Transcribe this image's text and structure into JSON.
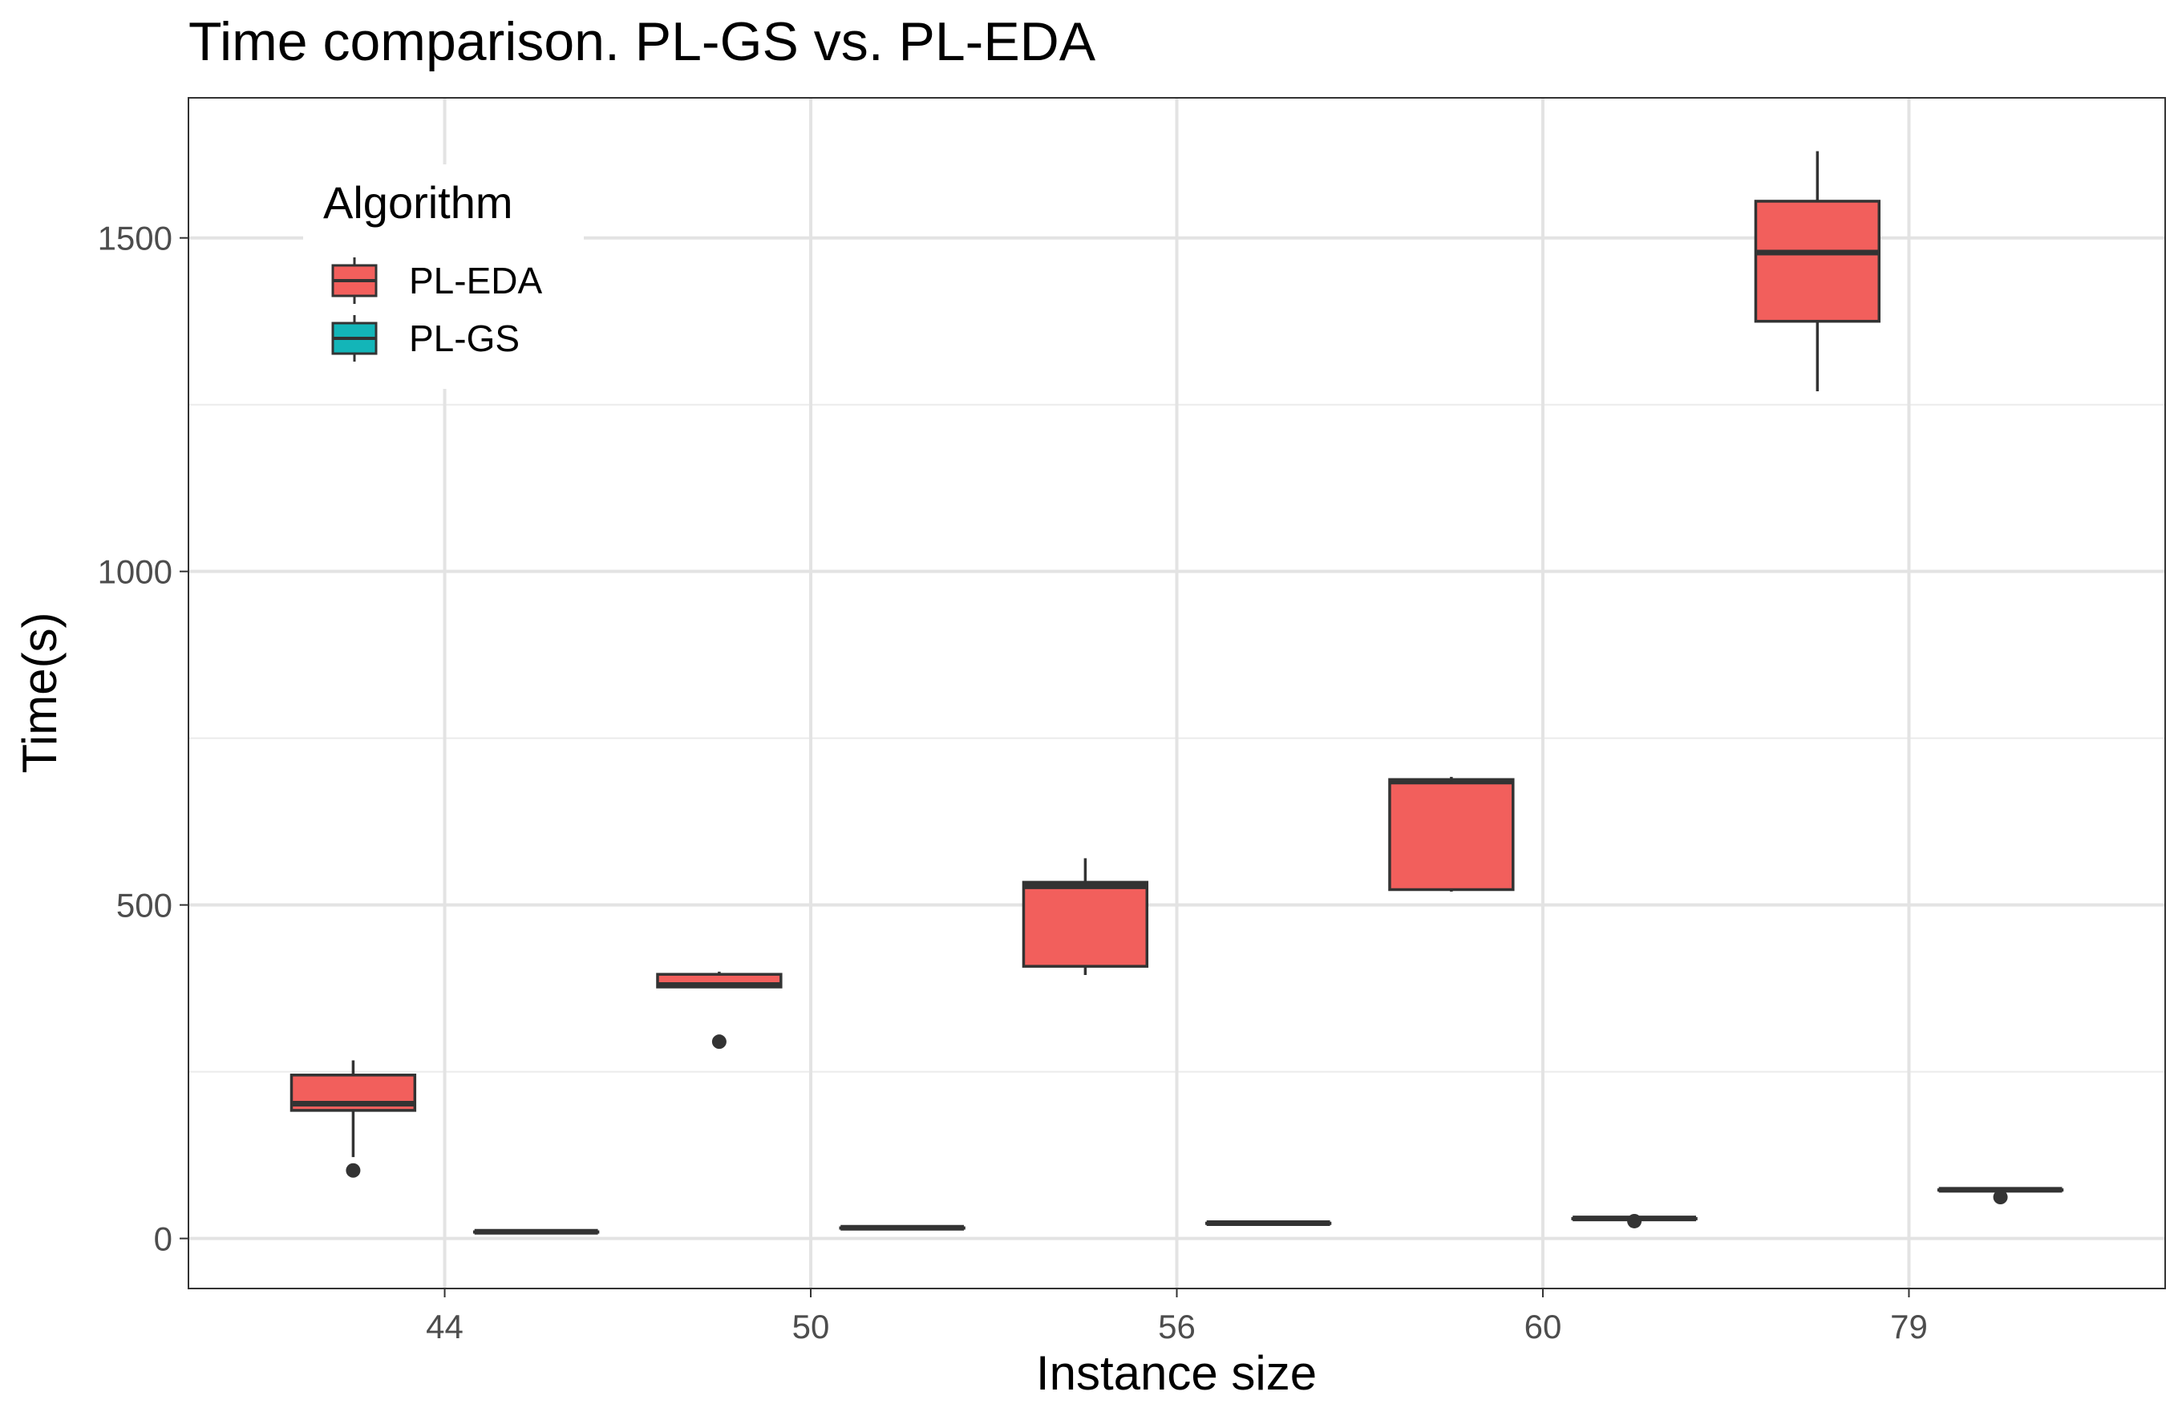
{
  "chart_data": {
    "type": "boxplot",
    "title": "Time comparison. PL-GS vs. PL-EDA",
    "xlabel": "Instance size",
    "ylabel": "Time(s)",
    "ylim": [
      -75,
      1710
    ],
    "y_ticks": [
      0,
      500,
      1000,
      1500
    ],
    "y_tick_labels": [
      "0",
      "500",
      "1000",
      "1500"
    ],
    "categories": [
      "44",
      "50",
      "56",
      "60",
      "79"
    ],
    "grid": true,
    "legend": {
      "title": "Algorithm",
      "placement": "top-left inside",
      "entries": [
        "PL-EDA",
        "PL-GS"
      ]
    },
    "series": [
      {
        "name": "PL-EDA",
        "color": "#F25F5C",
        "boxes": [
          {
            "category": "44",
            "min": 122,
            "q1": 192,
            "median": 202,
            "q3": 245,
            "max": 267,
            "outliers": [
              102
            ]
          },
          {
            "category": "50",
            "min": 377,
            "q1": 377,
            "median": 380,
            "q3": 396,
            "max": 400,
            "outliers": [
              295
            ]
          },
          {
            "category": "56",
            "min": 395,
            "q1": 408,
            "median": 528,
            "q3": 534,
            "max": 570,
            "outliers": []
          },
          {
            "category": "60",
            "min": 520,
            "q1": 523,
            "median": 685,
            "q3": 688,
            "max": 692,
            "outliers": []
          },
          {
            "category": "79",
            "min": 1270,
            "q1": 1375,
            "median": 1478,
            "q3": 1555,
            "max": 1630,
            "outliers": []
          }
        ]
      },
      {
        "name": "PL-GS",
        "color": "#13B5B8",
        "boxes": [
          {
            "category": "44",
            "min": 10,
            "q1": 10,
            "median": 10,
            "q3": 10,
            "max": 10,
            "outliers": []
          },
          {
            "category": "50",
            "min": 16,
            "q1": 16,
            "median": 16,
            "q3": 16,
            "max": 16,
            "outliers": []
          },
          {
            "category": "56",
            "min": 23,
            "q1": 23,
            "median": 23,
            "q3": 23,
            "max": 23,
            "outliers": []
          },
          {
            "category": "60",
            "min": 30,
            "q1": 30,
            "median": 30,
            "q3": 30,
            "max": 30,
            "outliers": [
              26
            ]
          },
          {
            "category": "79",
            "min": 73,
            "q1": 73,
            "median": 73,
            "q3": 73,
            "max": 73,
            "outliers": [
              62
            ]
          }
        ]
      }
    ]
  }
}
